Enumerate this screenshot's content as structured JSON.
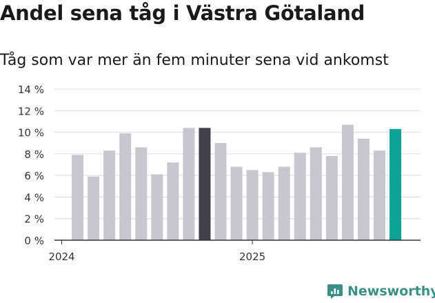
{
  "title": "Andel sena tåg i Västra Götaland",
  "subtitle": "Tåg som var mer än fem minuter sena vid ankomst",
  "brand": {
    "name": "Newsworthy"
  },
  "colors": {
    "bar_default": "#c8c7cf",
    "bar_highlight": "#41404b",
    "bar_latest": "#0aa396",
    "grid": "#dcdcdc",
    "axis": "#333333",
    "brand": "#3a8f86"
  },
  "chart_data": {
    "type": "bar",
    "title": "Andel sena tåg i Västra Götaland",
    "subtitle": "Tåg som var mer än fem minuter sena vid ankomst",
    "xlabel": "",
    "ylabel": "",
    "ylim": [
      0,
      14
    ],
    "y_ticks": [
      0,
      2,
      4,
      6,
      8,
      10,
      12,
      14
    ],
    "y_tick_labels": [
      "0 %",
      "2 %",
      "4 %",
      "6 %",
      "8 %",
      "10 %",
      "12 %",
      "14 %"
    ],
    "grid": true,
    "x_tick_labels": [
      {
        "label": "2024",
        "index": 0
      },
      {
        "label": "2025",
        "index": 12
      }
    ],
    "values": [
      7.9,
      5.9,
      8.3,
      9.9,
      8.6,
      6.1,
      7.2,
      10.4,
      10.4,
      9.0,
      6.8,
      6.5,
      6.3,
      6.8,
      8.1,
      8.6,
      7.8,
      10.7,
      9.4,
      8.3,
      10.3
    ],
    "first_bar_slot": 1,
    "highlight_index": 8,
    "latest_index": 20
  }
}
